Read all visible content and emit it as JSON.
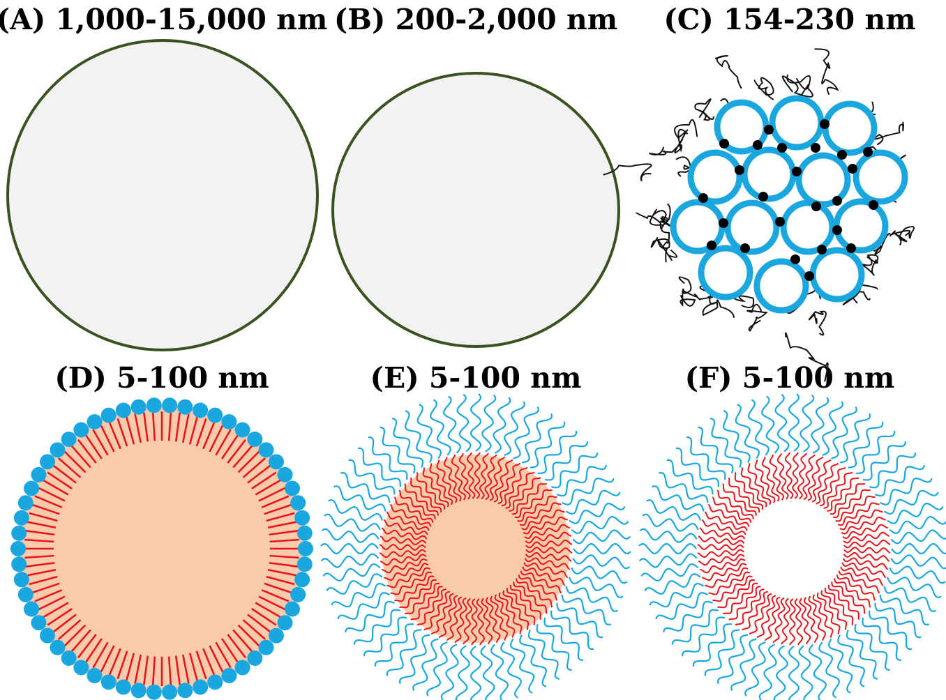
{
  "panels": [
    {
      "id": "A",
      "label": "(A) 1,000-15,000 nm"
    },
    {
      "id": "B",
      "label": "(B) 200-2,000 nm"
    },
    {
      "id": "C",
      "label": "(C) 154-230 nm"
    },
    {
      "id": "D",
      "label": "(D) 5-100 nm"
    },
    {
      "id": "E",
      "label": "(E) 5-100 nm"
    },
    {
      "id": "F",
      "label": "(F) 5-100 nm"
    }
  ],
  "colors": {
    "outline_green": "#3a5220",
    "sphere_fill": "#f2f2f2",
    "hydrophilic_blue": "#1aa7df",
    "hydrophobic_red": "#e8141a",
    "core_peach": "#f8cbad",
    "junction_black": "#000000",
    "polymer_chain": "#111111"
  },
  "icons": {
    "A": "solid-sphere-icon",
    "B": "solid-sphere-icon",
    "C": "nanogel-network-icon",
    "D": "liposome-icon",
    "E": "core-shell-micelle-icon",
    "F": "hollow-micelle-icon"
  }
}
